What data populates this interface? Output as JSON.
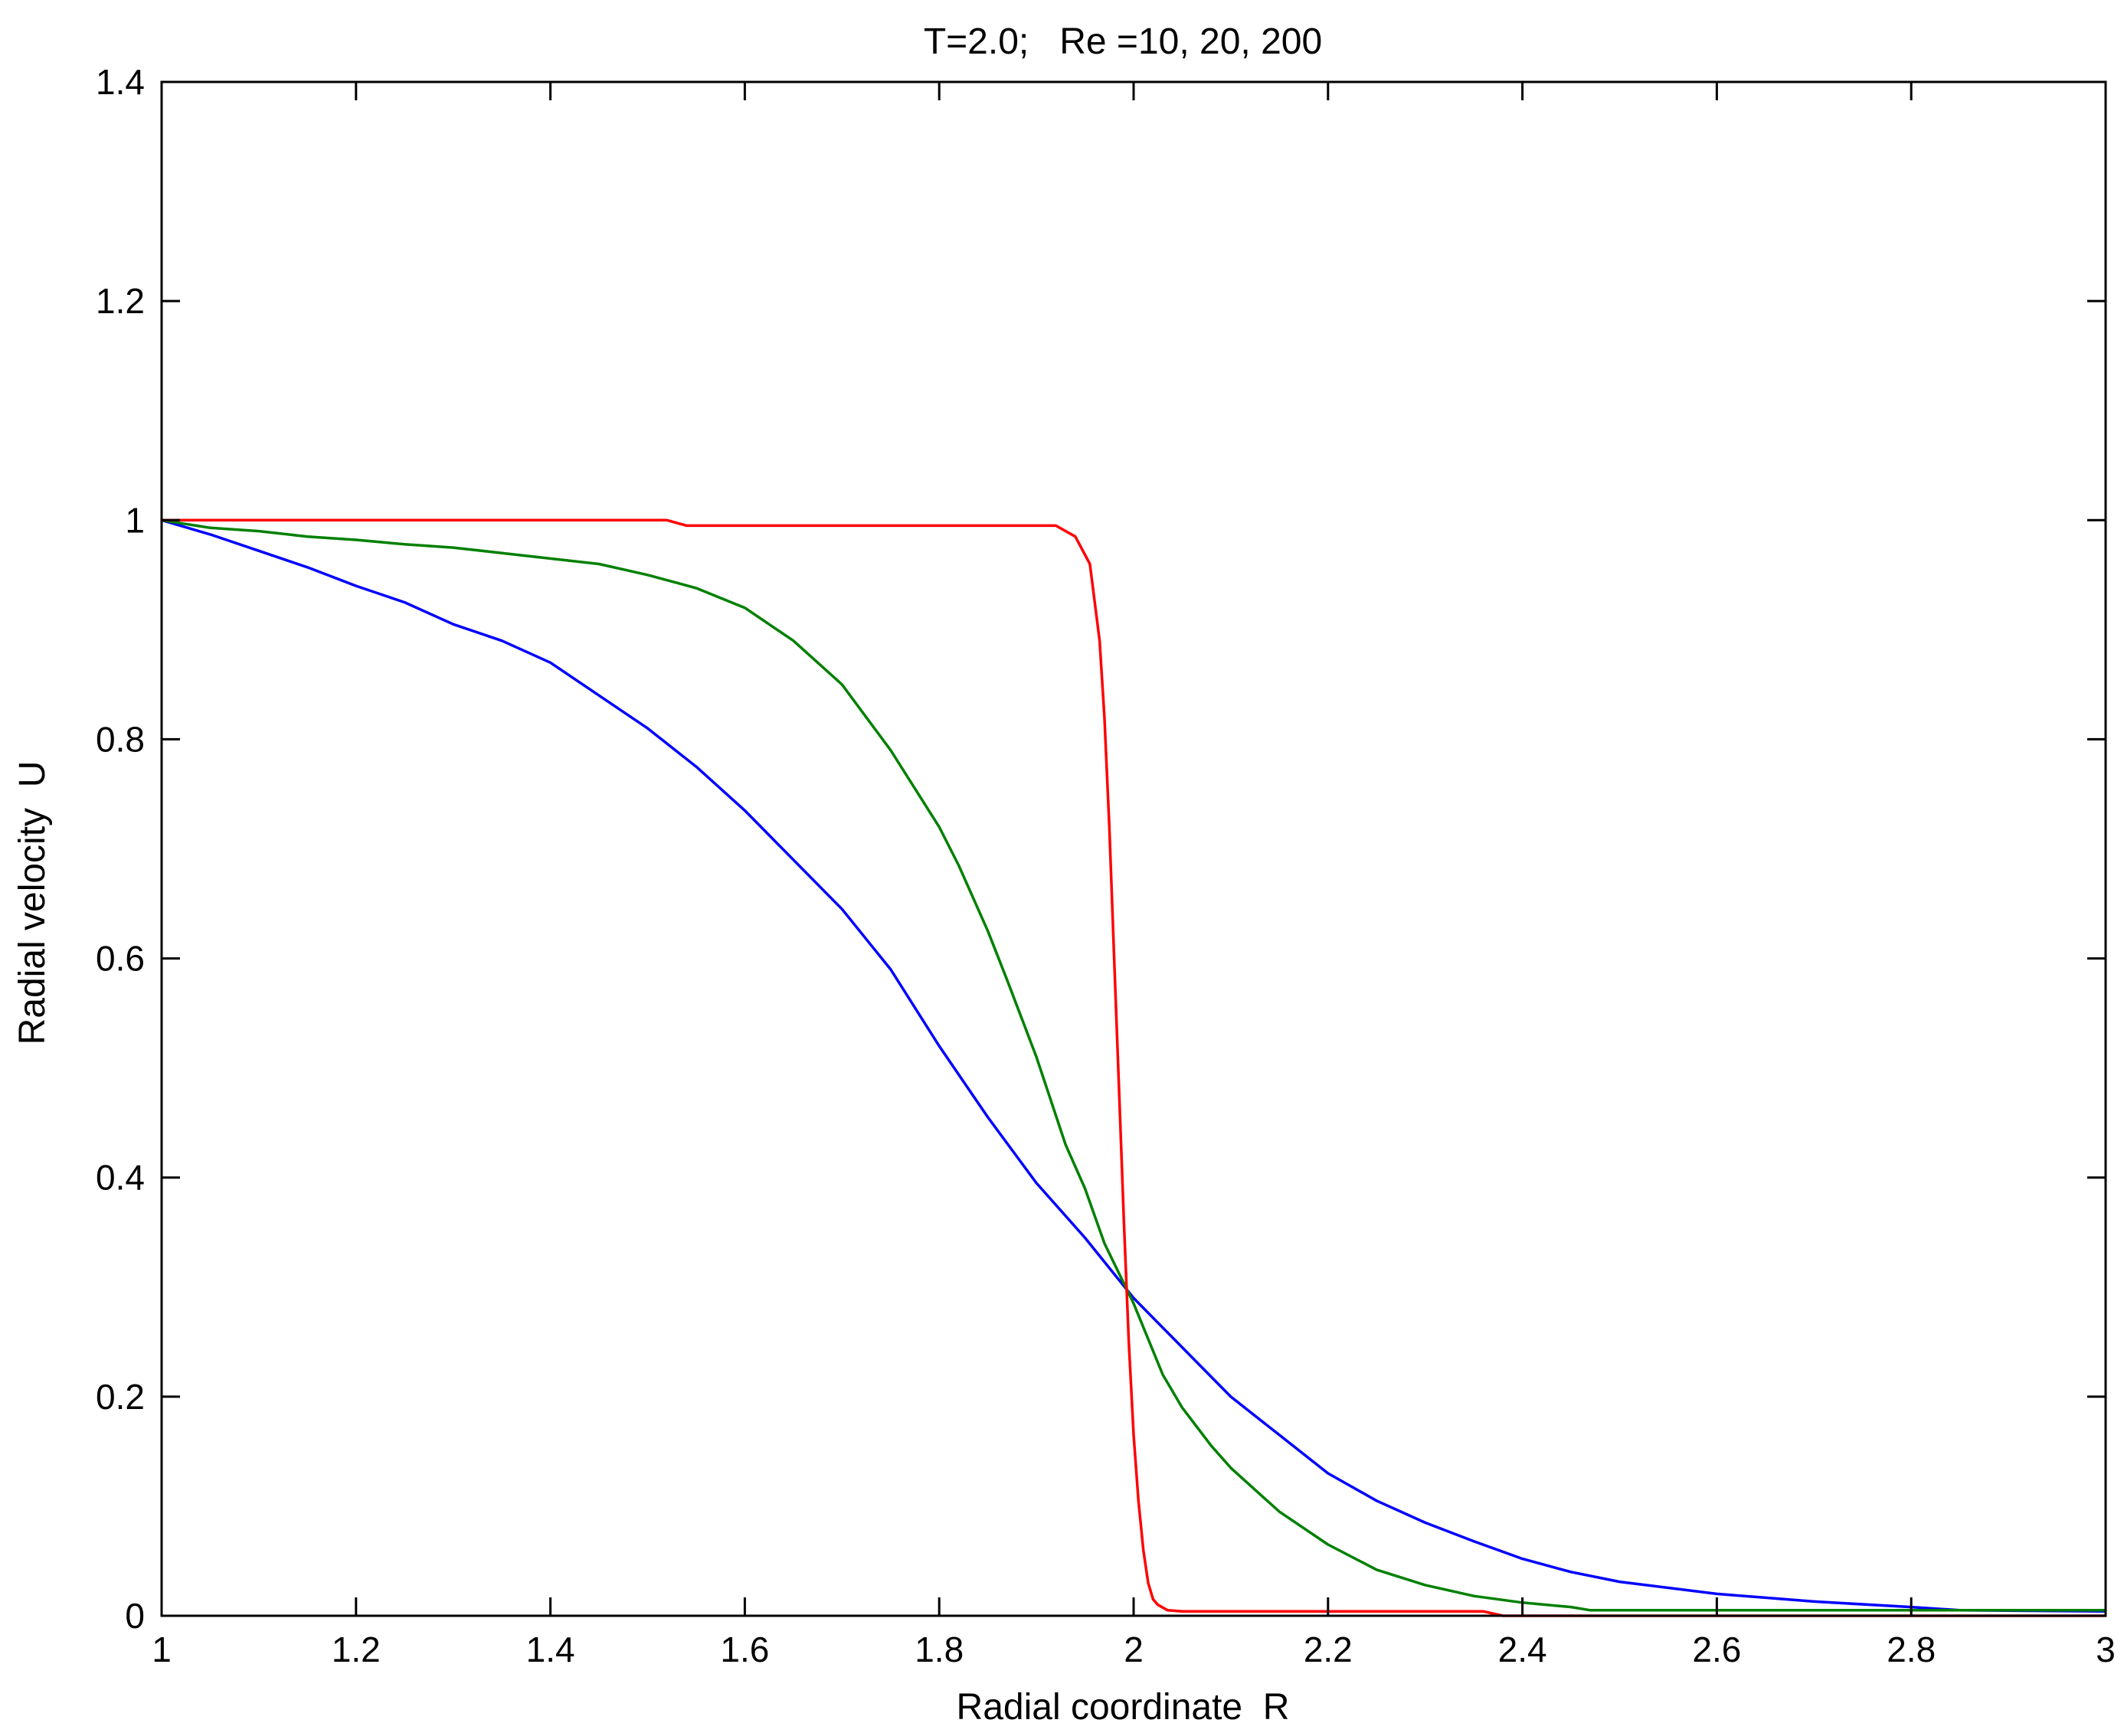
{
  "chart_data": {
    "type": "line",
    "title": "T=2.0;   Re =10, 20, 200",
    "xlabel": "Radial coordinate  R",
    "ylabel": "Radial velocity  U",
    "xlim": [
      1,
      3
    ],
    "ylim": [
      0,
      1.4
    ],
    "xticks": [
      1,
      1.2,
      1.4,
      1.6,
      1.8,
      2,
      2.2,
      2.4,
      2.6,
      2.8,
      3
    ],
    "xtick_labels": [
      "1",
      "1.2",
      "1.4",
      "1.6",
      "1.8",
      "2",
      "2.2",
      "2.4",
      "2.6",
      "2.8",
      "3"
    ],
    "yticks": [
      0,
      0.2,
      0.4,
      0.6,
      0.8,
      1,
      1.2,
      1.4
    ],
    "ytick_labels": [
      "0",
      "0.2",
      "0.4",
      "0.6",
      "0.8",
      "1",
      "1.2",
      "1.4"
    ],
    "grid": false,
    "box": true,
    "series": [
      {
        "color": "#0000ff",
        "x": [
          1.0,
          1.05,
          1.1,
          1.15,
          1.2,
          1.25,
          1.3,
          1.35,
          1.4,
          1.45,
          1.5,
          1.55,
          1.6,
          1.65,
          1.7,
          1.75,
          1.8,
          1.85,
          1.9,
          1.95,
          2.0,
          2.05,
          2.1,
          2.15,
          2.2,
          2.25,
          2.3,
          2.35,
          2.4,
          2.45,
          2.5,
          2.6,
          2.7,
          2.8,
          2.85,
          3.0
        ],
        "y": [
          1.0,
          0.987,
          0.972,
          0.957,
          0.94,
          0.925,
          0.905,
          0.89,
          0.87,
          0.84,
          0.81,
          0.775,
          0.735,
          0.69,
          0.645,
          0.59,
          0.52,
          0.455,
          0.395,
          0.345,
          0.29,
          0.245,
          0.2,
          0.165,
          0.13,
          0.105,
          0.085,
          0.068,
          0.052,
          0.04,
          0.031,
          0.02,
          0.013,
          0.008,
          0.005,
          0.004
        ]
      },
      {
        "color": "#008000",
        "x": [
          1.0,
          1.05,
          1.1,
          1.15,
          1.2,
          1.25,
          1.3,
          1.35,
          1.4,
          1.45,
          1.5,
          1.55,
          1.6,
          1.65,
          1.7,
          1.75,
          1.8,
          1.82,
          1.85,
          1.87,
          1.9,
          1.93,
          1.95,
          1.97,
          2.0,
          2.03,
          2.05,
          2.08,
          2.1,
          2.15,
          2.2,
          2.25,
          2.3,
          2.35,
          2.4,
          2.45,
          2.47,
          3.0
        ],
        "y": [
          1.0,
          0.993,
          0.99,
          0.985,
          0.982,
          0.978,
          0.975,
          0.97,
          0.965,
          0.96,
          0.95,
          0.938,
          0.92,
          0.89,
          0.85,
          0.79,
          0.72,
          0.685,
          0.625,
          0.58,
          0.51,
          0.43,
          0.39,
          0.34,
          0.285,
          0.22,
          0.19,
          0.155,
          0.135,
          0.095,
          0.065,
          0.042,
          0.028,
          0.018,
          0.012,
          0.008,
          0.005,
          0.005
        ]
      },
      {
        "color": "#ff0000",
        "x": [
          1.0,
          1.52,
          1.54,
          1.6,
          1.7,
          1.8,
          1.9,
          1.92,
          1.94,
          1.955,
          1.965,
          1.97,
          1.975,
          1.98,
          1.985,
          1.99,
          1.995,
          2.0,
          2.005,
          2.01,
          2.015,
          2.02,
          2.025,
          2.035,
          2.05,
          2.1,
          2.2,
          2.3,
          2.36,
          2.38,
          3.0
        ],
        "y": [
          1.0,
          1.0,
          0.995,
          0.995,
          0.995,
          0.995,
          0.995,
          0.995,
          0.985,
          0.96,
          0.89,
          0.82,
          0.72,
          0.6,
          0.48,
          0.36,
          0.25,
          0.165,
          0.105,
          0.06,
          0.03,
          0.015,
          0.01,
          0.005,
          0.004,
          0.004,
          0.004,
          0.004,
          0.004,
          0.0,
          0.0
        ]
      }
    ]
  }
}
